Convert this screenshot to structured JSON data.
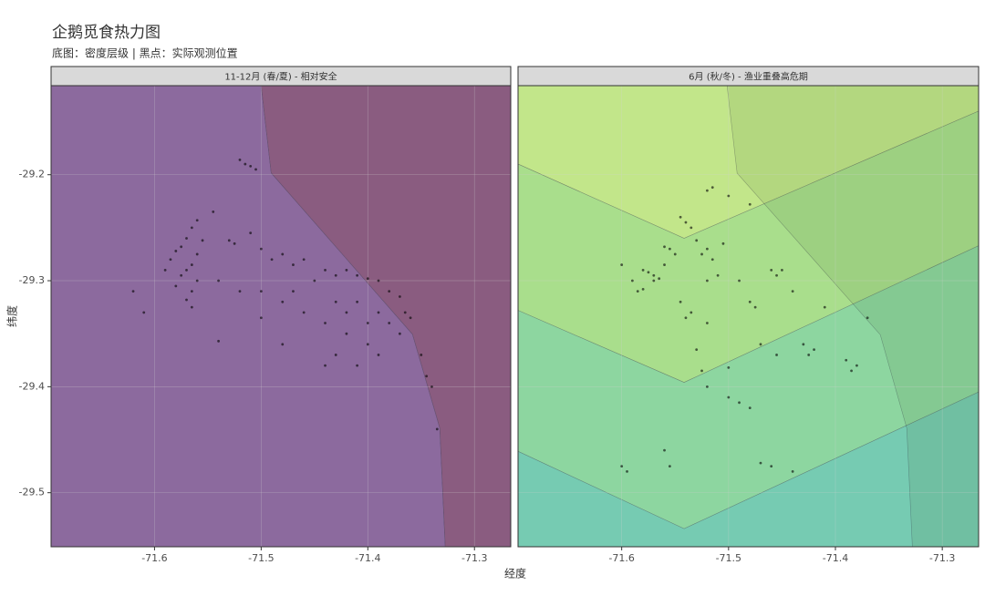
{
  "figure": {
    "title": "企鹅觅食热力图",
    "subtitle": "底图：密度层级 | 黑点：实际观测位置",
    "x_label": "经度",
    "y_label": "纬度"
  },
  "chart_data": [
    {
      "type": "scatter",
      "title": "11-12月 (春/夏) - 相对安全",
      "xlim": [
        -71.697,
        -71.266
      ],
      "ylim": [
        -29.551,
        -29.116
      ],
      "xticks": [
        -71.6,
        -71.5,
        -71.4,
        -71.3
      ],
      "yticks": [
        -29.2,
        -29.3,
        -29.4,
        -29.5
      ],
      "grid": true,
      "point_color": "#000000",
      "regions": [
        {
          "color": "#8c6a9e",
          "x": [
            -71.697,
            -71.5,
            -71.4906,
            -71.3581,
            -71.3325,
            -71.3274,
            -71.697
          ],
          "y": [
            -29.116,
            -29.116,
            -29.1983,
            -29.3505,
            -29.439,
            -29.551,
            -29.551
          ]
        },
        {
          "color": "#8a5c80",
          "x": [
            -71.5,
            -71.266,
            -71.266,
            -71.3274,
            -71.3325,
            -71.3581,
            -71.4906
          ],
          "y": [
            -29.116,
            -29.116,
            -29.551,
            -29.551,
            -29.439,
            -29.3505,
            -29.1983
          ]
        }
      ],
      "x": [
        -71.52,
        -71.515,
        -71.51,
        -71.505,
        -71.56,
        -71.565,
        -71.57,
        -71.575,
        -71.58,
        -71.585,
        -71.56,
        -71.565,
        -71.57,
        -71.575,
        -71.56,
        -71.565,
        -71.57,
        -71.565,
        -71.555,
        -71.59,
        -71.58,
        -71.545,
        -71.53,
        -71.525,
        -71.51,
        -71.5,
        -71.49,
        -71.48,
        -71.47,
        -71.46,
        -71.45,
        -71.44,
        -71.43,
        -71.42,
        -71.41,
        -71.4,
        -71.39,
        -71.38,
        -71.37,
        -71.54,
        -71.52,
        -71.5,
        -71.48,
        -71.46,
        -71.44,
        -71.42,
        -71.4,
        -71.41,
        -71.39,
        -71.38,
        -71.365,
        -71.36,
        -71.62,
        -71.61,
        -71.54,
        -71.48,
        -71.43,
        -71.41,
        -71.39,
        -71.35,
        -71.345,
        -71.34,
        -71.335,
        -71.44,
        -71.5,
        -71.47,
        -71.43,
        -71.42,
        -71.4,
        -71.37
      ],
      "y": [
        -29.186,
        -29.19,
        -29.192,
        -29.195,
        -29.243,
        -29.25,
        -29.26,
        -29.268,
        -29.272,
        -29.28,
        -29.275,
        -29.285,
        -29.29,
        -29.295,
        -29.3,
        -29.31,
        -29.318,
        -29.325,
        -29.262,
        -29.29,
        -29.305,
        -29.235,
        -29.262,
        -29.265,
        -29.255,
        -29.27,
        -29.28,
        -29.275,
        -29.285,
        -29.28,
        -29.3,
        -29.29,
        -29.295,
        -29.29,
        -29.295,
        -29.298,
        -29.3,
        -29.31,
        -29.315,
        -29.3,
        -29.31,
        -29.31,
        -29.32,
        -29.33,
        -29.34,
        -29.35,
        -29.36,
        -29.32,
        -29.33,
        -29.34,
        -29.33,
        -29.335,
        -29.31,
        -29.33,
        -29.357,
        -29.36,
        -29.37,
        -29.38,
        -29.37,
        -29.37,
        -29.39,
        -29.4,
        -29.44,
        -29.38,
        -29.335,
        -29.31,
        -29.32,
        -29.33,
        -29.34,
        -29.35
      ]
    },
    {
      "type": "scatter",
      "title": "6月 (秋/冬) - 渔业重叠高危期",
      "xlim": [
        -71.697,
        -71.266
      ],
      "ylim": [
        -29.551,
        -29.116
      ],
      "xticks": [
        -71.6,
        -71.5,
        -71.4,
        -71.3
      ],
      "yticks": [
        -29.2,
        -29.3,
        -29.4,
        -29.5
      ],
      "grid": true,
      "point_color": "#000000",
      "regions": [
        {
          "color": "#c2e68a",
          "x": [
            -71.697,
            -71.266,
            -71.266,
            -71.5416,
            -71.697
          ],
          "y": [
            -29.116,
            -29.116,
            -29.14,
            -29.26,
            -29.19
          ]
        },
        {
          "color": "#a9de8c",
          "x": [
            -71.697,
            -71.5416,
            -71.266,
            -71.266,
            -71.5416,
            -71.697
          ],
          "y": [
            -29.19,
            -29.26,
            -29.14,
            -29.267,
            -29.396,
            -29.328
          ]
        },
        {
          "color": "#8dd6a0",
          "x": [
            -71.697,
            -71.5416,
            -71.266,
            -71.266,
            -71.5416,
            -71.697
          ],
          "y": [
            -29.328,
            -29.396,
            -29.267,
            -29.405,
            -29.534,
            -29.461
          ]
        },
        {
          "color": "#76cbb2",
          "x": [
            -71.697,
            -71.5416,
            -71.266,
            -71.266,
            -71.697
          ],
          "y": [
            -29.461,
            -29.534,
            -29.405,
            -29.551,
            -29.551
          ]
        },
        {
          "color": "rgba(70,110,50,0.12)",
          "x": [
            -71.5014,
            -71.266,
            -71.266,
            -71.328,
            -71.3332,
            -71.358,
            -71.492
          ],
          "y": [
            -29.116,
            -29.116,
            -29.551,
            -29.551,
            -29.4393,
            -29.351,
            -29.1985
          ]
        }
      ],
      "x": [
        -71.52,
        -71.515,
        -71.5,
        -71.48,
        -71.545,
        -71.54,
        -71.535,
        -71.6,
        -71.59,
        -71.58,
        -71.575,
        -71.57,
        -71.565,
        -71.57,
        -71.58,
        -71.585,
        -71.56,
        -71.555,
        -71.55,
        -71.56,
        -71.53,
        -71.525,
        -71.52,
        -71.515,
        -71.52,
        -71.51,
        -71.505,
        -71.49,
        -71.54,
        -71.535,
        -71.545,
        -71.52,
        -71.48,
        -71.475,
        -71.46,
        -71.455,
        -71.45,
        -71.44,
        -71.41,
        -71.37,
        -71.53,
        -71.525,
        -71.5,
        -71.52,
        -71.5,
        -71.49,
        -71.48,
        -71.47,
        -71.455,
        -71.43,
        -71.425,
        -71.42,
        -71.39,
        -71.38,
        -71.385,
        -71.6,
        -71.595,
        -71.56,
        -71.555,
        -71.47,
        -71.46,
        -71.44
      ],
      "y": [
        -29.215,
        -29.212,
        -29.22,
        -29.228,
        -29.24,
        -29.245,
        -29.25,
        -29.285,
        -29.3,
        -29.29,
        -29.292,
        -29.295,
        -29.298,
        -29.3,
        -29.308,
        -29.31,
        -29.285,
        -29.27,
        -29.275,
        -29.268,
        -29.262,
        -29.275,
        -29.27,
        -29.28,
        -29.3,
        -29.295,
        -29.265,
        -29.3,
        -29.335,
        -29.33,
        -29.32,
        -29.34,
        -29.32,
        -29.325,
        -29.29,
        -29.295,
        -29.29,
        -29.31,
        -29.325,
        -29.335,
        -29.365,
        -29.385,
        -29.382,
        -29.4,
        -29.41,
        -29.415,
        -29.42,
        -29.36,
        -29.37,
        -29.36,
        -29.37,
        -29.365,
        -29.375,
        -29.38,
        -29.385,
        -29.475,
        -29.48,
        -29.46,
        -29.475,
        -29.472,
        -29.475,
        -29.48
      ]
    }
  ]
}
